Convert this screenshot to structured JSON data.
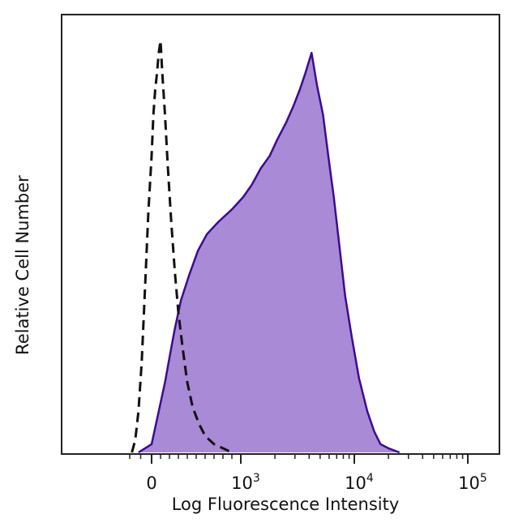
{
  "chart_data": {
    "type": "area",
    "title": "",
    "xlabel": "Log Fluorescence Intensity",
    "ylabel": "Relative Cell Number",
    "x_scale": "logicle",
    "xlim": [
      -300,
      200000
    ],
    "ylim": [
      0,
      100
    ],
    "grid": false,
    "legend": "none",
    "x_ticks": [
      {
        "value": 0,
        "base": "0",
        "exp": ""
      },
      {
        "value": 1000,
        "base": "10",
        "exp": "3"
      },
      {
        "value": 10000,
        "base": "10",
        "exp": "4"
      },
      {
        "value": 100000,
        "base": "10",
        "exp": "5"
      }
    ],
    "series": [
      {
        "style": "filled",
        "fill_color": "#a98ad6",
        "line_color": "#3d0a91",
        "x": [
          -120,
          -60,
          0,
          30,
          60,
          100,
          150,
          200,
          260,
          330,
          420,
          520,
          620,
          750,
          900,
          1050,
          1250,
          1500,
          1800,
          2100,
          2500,
          2900,
          3300,
          3700,
          4200,
          4700,
          5300,
          5900,
          6600,
          7400,
          8300,
          9500,
          11000,
          13000,
          15000,
          17000,
          20000,
          25000
        ],
        "y": [
          0,
          1,
          2,
          5,
          8,
          12,
          17,
          23,
          30,
          37,
          43,
          49,
          53,
          56,
          59,
          62,
          65,
          69,
          72,
          76,
          80,
          84,
          88,
          92,
          97,
          89,
          82,
          72,
          62,
          50,
          38,
          28,
          18,
          10,
          5,
          2,
          1,
          0
        ]
      },
      {
        "style": "dashed",
        "line_color": "#111111",
        "x": [
          -180,
          -150,
          -120,
          -90,
          -60,
          -30,
          0,
          20,
          40,
          60,
          80,
          100,
          120,
          150,
          180,
          220,
          260,
          300,
          350,
          400,
          460,
          530,
          600,
          700,
          800,
          900
        ],
        "y": [
          0,
          3,
          10,
          22,
          40,
          58,
          72,
          82,
          88,
          92,
          97,
          100,
          92,
          82,
          70,
          56,
          44,
          34,
          25,
          17,
          11,
          7,
          4,
          2,
          1,
          0
        ]
      }
    ]
  }
}
